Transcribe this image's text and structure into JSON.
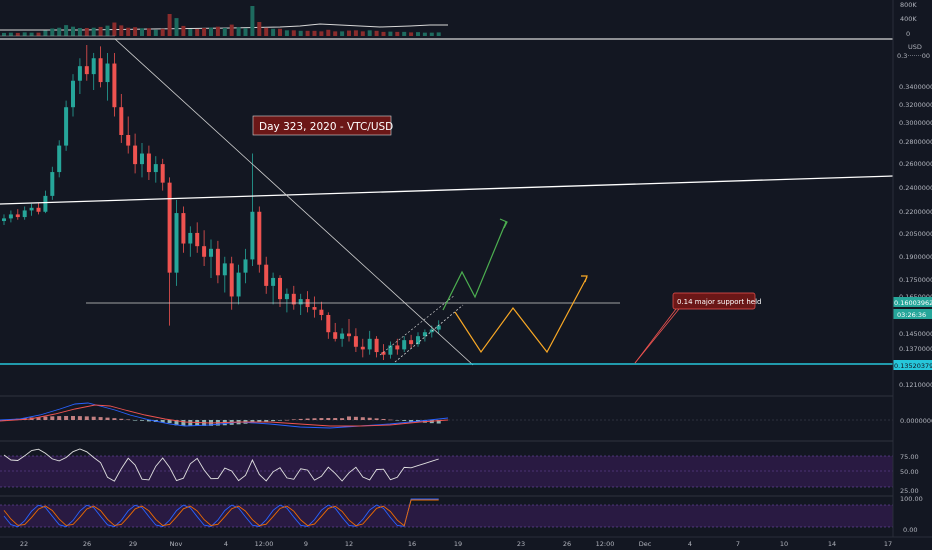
{
  "chart_data": {
    "type": "candlestick",
    "title": "",
    "instrument_label": "Day 323, 2020 - VTC/USD",
    "annotation": "0.14 major support held",
    "price_axis": {
      "unit": "USD",
      "top_label": "0.3·······00",
      "ticks": [
        "0.34000000",
        "0.32000000",
        "0.30000000",
        "0.28000000",
        "0.26000000",
        "0.24000000",
        "0.22000000",
        "0.20500000",
        "0.19000000",
        "0.17500000",
        "0.16500000",
        "0.14500000",
        "0.13700000",
        "0.12100000"
      ],
      "current_price_label": "0.16003962",
      "countdown_label": "03:26:36",
      "support_label": "0.13520379"
    },
    "volume_axis": {
      "ticks": [
        "800K",
        "400K",
        "0"
      ]
    },
    "macd_axis": {
      "ticks": [
        "0.00000000"
      ]
    },
    "rsi_axis": {
      "ticks": [
        "75.00",
        "50.00",
        "25.00"
      ]
    },
    "stoch_axis": {
      "ticks": [
        "100.00",
        "0.00"
      ]
    },
    "x_axis": {
      "ticks": [
        "22",
        "26",
        "29",
        "Nov",
        "4",
        "12:00",
        "9",
        "12",
        "16",
        "19",
        "23",
        "26",
        "12:00",
        "Dec",
        "4",
        "7",
        "10",
        "14",
        "17"
      ]
    },
    "ohlc_series": [
      {
        "o": 0.239,
        "h": 0.244,
        "l": 0.236,
        "c": 0.241
      },
      {
        "o": 0.241,
        "h": 0.247,
        "l": 0.238,
        "c": 0.244
      },
      {
        "o": 0.244,
        "h": 0.248,
        "l": 0.24,
        "c": 0.242
      },
      {
        "o": 0.242,
        "h": 0.25,
        "l": 0.24,
        "c": 0.247
      },
      {
        "o": 0.247,
        "h": 0.252,
        "l": 0.243,
        "c": 0.249
      },
      {
        "o": 0.249,
        "h": 0.253,
        "l": 0.244,
        "c": 0.246
      },
      {
        "o": 0.246,
        "h": 0.262,
        "l": 0.245,
        "c": 0.258
      },
      {
        "o": 0.258,
        "h": 0.28,
        "l": 0.255,
        "c": 0.276
      },
      {
        "o": 0.276,
        "h": 0.3,
        "l": 0.272,
        "c": 0.296
      },
      {
        "o": 0.296,
        "h": 0.33,
        "l": 0.292,
        "c": 0.325
      },
      {
        "o": 0.325,
        "h": 0.35,
        "l": 0.318,
        "c": 0.345
      },
      {
        "o": 0.345,
        "h": 0.362,
        "l": 0.335,
        "c": 0.356
      },
      {
        "o": 0.356,
        "h": 0.372,
        "l": 0.345,
        "c": 0.35
      },
      {
        "o": 0.35,
        "h": 0.366,
        "l": 0.338,
        "c": 0.362
      },
      {
        "o": 0.362,
        "h": 0.371,
        "l": 0.34,
        "c": 0.344
      },
      {
        "o": 0.344,
        "h": 0.366,
        "l": 0.33,
        "c": 0.358
      },
      {
        "o": 0.358,
        "h": 0.366,
        "l": 0.318,
        "c": 0.325
      },
      {
        "o": 0.325,
        "h": 0.335,
        "l": 0.298,
        "c": 0.304
      },
      {
        "o": 0.304,
        "h": 0.318,
        "l": 0.29,
        "c": 0.296
      },
      {
        "o": 0.296,
        "h": 0.305,
        "l": 0.275,
        "c": 0.282
      },
      {
        "o": 0.282,
        "h": 0.298,
        "l": 0.272,
        "c": 0.29
      },
      {
        "o": 0.29,
        "h": 0.296,
        "l": 0.27,
        "c": 0.276
      },
      {
        "o": 0.276,
        "h": 0.288,
        "l": 0.268,
        "c": 0.282
      },
      {
        "o": 0.282,
        "h": 0.286,
        "l": 0.262,
        "c": 0.268
      },
      {
        "o": 0.268,
        "h": 0.272,
        "l": 0.16,
        "c": 0.2
      },
      {
        "o": 0.2,
        "h": 0.255,
        "l": 0.19,
        "c": 0.245
      },
      {
        "o": 0.245,
        "h": 0.25,
        "l": 0.215,
        "c": 0.222
      },
      {
        "o": 0.222,
        "h": 0.235,
        "l": 0.212,
        "c": 0.23
      },
      {
        "o": 0.23,
        "h": 0.238,
        "l": 0.215,
        "c": 0.22
      },
      {
        "o": 0.22,
        "h": 0.232,
        "l": 0.205,
        "c": 0.212
      },
      {
        "o": 0.212,
        "h": 0.225,
        "l": 0.196,
        "c": 0.218
      },
      {
        "o": 0.218,
        "h": 0.224,
        "l": 0.192,
        "c": 0.198
      },
      {
        "o": 0.198,
        "h": 0.212,
        "l": 0.185,
        "c": 0.207
      },
      {
        "o": 0.207,
        "h": 0.212,
        "l": 0.172,
        "c": 0.182
      },
      {
        "o": 0.182,
        "h": 0.206,
        "l": 0.176,
        "c": 0.2
      },
      {
        "o": 0.2,
        "h": 0.218,
        "l": 0.192,
        "c": 0.21
      },
      {
        "o": 0.21,
        "h": 0.29,
        "l": 0.205,
        "c": 0.246
      },
      {
        "o": 0.246,
        "h": 0.25,
        "l": 0.2,
        "c": 0.206
      },
      {
        "o": 0.206,
        "h": 0.212,
        "l": 0.184,
        "c": 0.19
      },
      {
        "o": 0.19,
        "h": 0.2,
        "l": 0.176,
        "c": 0.196
      },
      {
        "o": 0.196,
        "h": 0.198,
        "l": 0.174,
        "c": 0.18
      },
      {
        "o": 0.18,
        "h": 0.188,
        "l": 0.17,
        "c": 0.184
      },
      {
        "o": 0.184,
        "h": 0.19,
        "l": 0.172,
        "c": 0.176
      },
      {
        "o": 0.176,
        "h": 0.184,
        "l": 0.168,
        "c": 0.18
      },
      {
        "o": 0.18,
        "h": 0.186,
        "l": 0.17,
        "c": 0.174
      },
      {
        "o": 0.174,
        "h": 0.182,
        "l": 0.166,
        "c": 0.172
      },
      {
        "o": 0.172,
        "h": 0.178,
        "l": 0.164,
        "c": 0.168
      },
      {
        "o": 0.168,
        "h": 0.17,
        "l": 0.15,
        "c": 0.155
      },
      {
        "o": 0.155,
        "h": 0.162,
        "l": 0.148,
        "c": 0.15
      },
      {
        "o": 0.15,
        "h": 0.158,
        "l": 0.144,
        "c": 0.154
      },
      {
        "o": 0.154,
        "h": 0.165,
        "l": 0.148,
        "c": 0.152
      },
      {
        "o": 0.152,
        "h": 0.158,
        "l": 0.14,
        "c": 0.144
      },
      {
        "o": 0.144,
        "h": 0.15,
        "l": 0.136,
        "c": 0.142
      },
      {
        "o": 0.142,
        "h": 0.156,
        "l": 0.138,
        "c": 0.15
      },
      {
        "o": 0.15,
        "h": 0.152,
        "l": 0.136,
        "c": 0.14
      },
      {
        "o": 0.14,
        "h": 0.146,
        "l": 0.134,
        "c": 0.138
      },
      {
        "o": 0.138,
        "h": 0.148,
        "l": 0.135,
        "c": 0.145
      },
      {
        "o": 0.145,
        "h": 0.15,
        "l": 0.138,
        "c": 0.142
      },
      {
        "o": 0.142,
        "h": 0.152,
        "l": 0.14,
        "c": 0.149
      },
      {
        "o": 0.149,
        "h": 0.153,
        "l": 0.143,
        "c": 0.146
      },
      {
        "o": 0.146,
        "h": 0.155,
        "l": 0.144,
        "c": 0.152
      },
      {
        "o": 0.152,
        "h": 0.157,
        "l": 0.148,
        "c": 0.155
      },
      {
        "o": 0.155,
        "h": 0.16,
        "l": 0.151,
        "c": 0.157
      },
      {
        "o": 0.157,
        "h": 0.164,
        "l": 0.154,
        "c": 0.16
      }
    ],
    "colors": {
      "background": "#131722",
      "up": "#26a69a",
      "down": "#ef5350",
      "support_line": "#26c6da",
      "projection_green": "#4caf50",
      "projection_orange": "#f9a825",
      "label_bg": "#6b1717",
      "indicator_band": "#3d1e5c"
    }
  }
}
